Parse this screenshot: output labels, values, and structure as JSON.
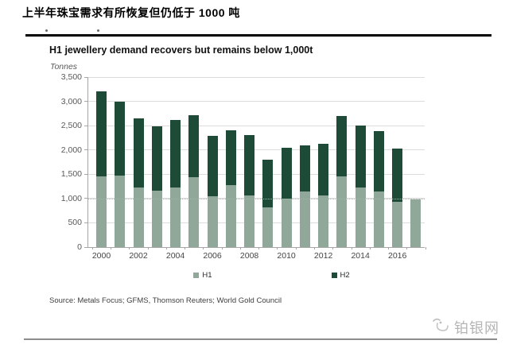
{
  "page": {
    "title_cn": "上半年珠宝需求有所恢复但仍低于 1000 吨"
  },
  "chart": {
    "title": "H1 jewellery demand recovers but remains below 1,000t",
    "unit_label": "Tonnes",
    "source": "Source: Metals Focus; GFMS, Thomson Reuters; World Gold Council"
  },
  "chart_data": {
    "type": "bar",
    "stacked": true,
    "title": "H1 jewellery demand recovers but remains below 1,000t",
    "ylabel": "Tonnes",
    "ylim": [
      0,
      3500
    ],
    "grid": true,
    "legend_position": "bottom",
    "reference_line": 1000,
    "categories": [
      2000,
      2001,
      2002,
      2003,
      2004,
      2005,
      2006,
      2007,
      2008,
      2009,
      2010,
      2011,
      2012,
      2013,
      2014,
      2015,
      2016,
      2017
    ],
    "series": [
      {
        "name": "H1",
        "color": "#8fa899",
        "values": [
          1450,
          1470,
          1230,
          1160,
          1220,
          1440,
          1050,
          1270,
          1070,
          810,
          1000,
          1150,
          1060,
          1450,
          1230,
          1150,
          940,
          980
        ]
      },
      {
        "name": "H2",
        "color": "#1e4b37",
        "values": [
          1750,
          1530,
          1420,
          1330,
          1400,
          1270,
          1240,
          1140,
          1230,
          990,
          1050,
          940,
          1070,
          1250,
          1270,
          1240,
          1090,
          0
        ]
      }
    ],
    "yticks": [
      {
        "value": 0,
        "label": "0"
      },
      {
        "value": 500,
        "label": "500"
      },
      {
        "value": 1000,
        "label": "1,000"
      },
      {
        "value": 1500,
        "label": "1,500"
      },
      {
        "value": 2000,
        "label": "2,000"
      },
      {
        "value": 2500,
        "label": "2,500"
      },
      {
        "value": 3000,
        "label": "3,000"
      },
      {
        "value": 3500,
        "label": "3,500"
      }
    ],
    "xtick_labels": [
      "2000",
      "2002",
      "2004",
      "2006",
      "2008",
      "2010",
      "2012",
      "2014",
      "2016"
    ]
  },
  "footer": {
    "logo_text": "铂银网"
  }
}
